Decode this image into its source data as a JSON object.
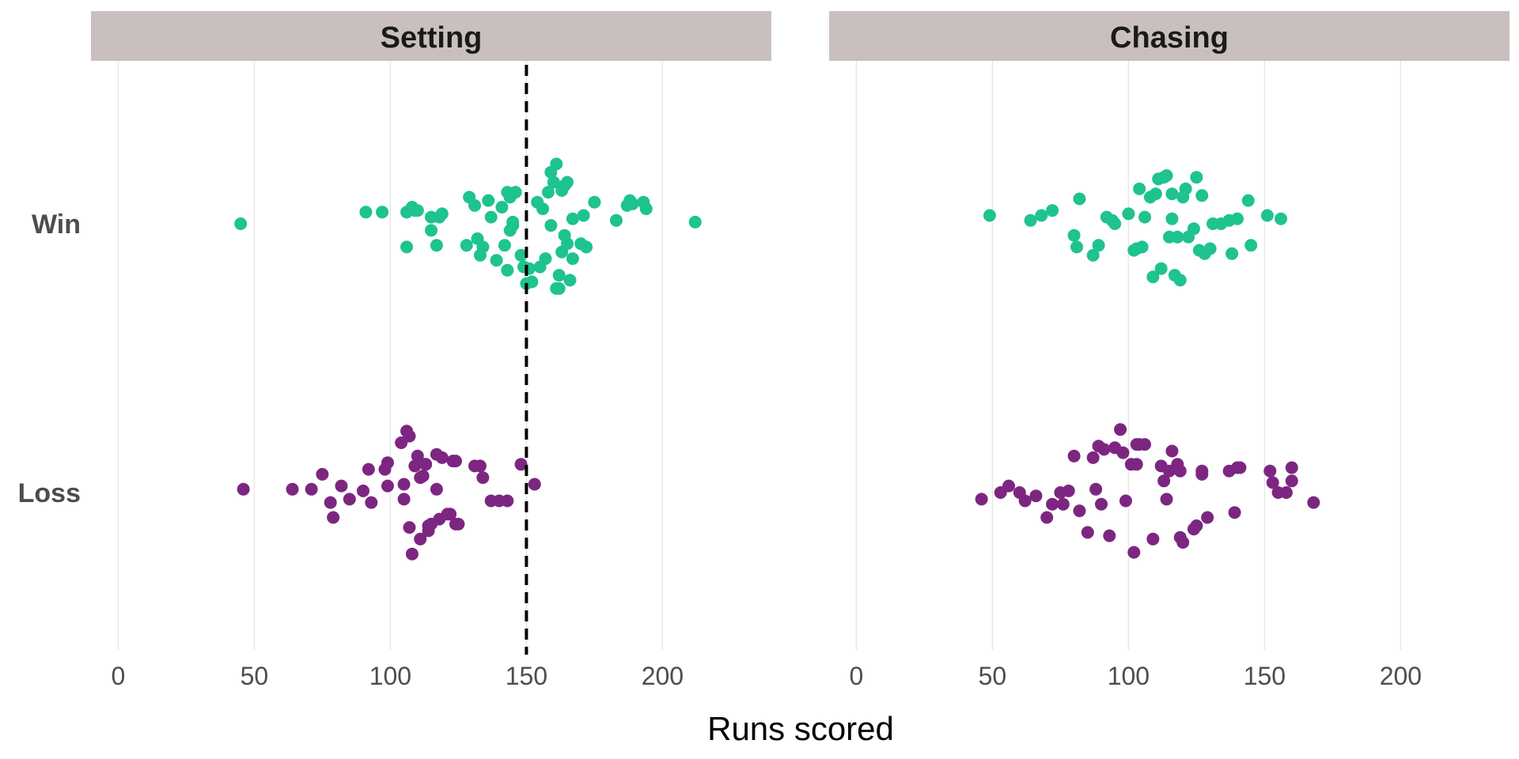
{
  "chart_data": {
    "type": "scatter",
    "subtype": "faceted beeswarm / jitter strip plot",
    "xlabel": "Runs scored",
    "ylabel": "",
    "xlim": [
      -10,
      240
    ],
    "x_ticks": [
      0,
      50,
      100,
      150,
      200
    ],
    "categories": [
      "Win",
      "Loss"
    ],
    "grid": "vertical major gridlines only",
    "legend": "none",
    "colors": {
      "Win": "#1ec38f",
      "Loss": "#7d2681",
      "strip": "#c9c0bd"
    },
    "facets": [
      {
        "title": "Setting",
        "reference_line": {
          "x": 150,
          "style": "dashed",
          "color": "#000000"
        },
        "series": [
          {
            "category": "Win",
            "x": [
              45,
              91,
              97,
              106,
              106,
              108,
              109,
              110,
              115,
              115,
              117,
              118,
              119,
              128,
              129,
              131,
              132,
              133,
              134,
              136,
              137,
              139,
              141,
              142,
              143,
              143,
              144,
              144,
              145,
              145,
              146,
              148,
              149,
              150,
              151,
              152,
              154,
              155,
              156,
              157,
              158,
              159,
              159,
              160,
              161,
              161,
              162,
              162,
              163,
              163,
              164,
              164,
              165,
              165,
              166,
              167,
              167,
              170,
              171,
              172,
              175,
              183,
              187,
              188,
              189,
              193,
              194,
              212
            ],
            "jitter": [
              0,
              0.07,
              0.07,
              -0.14,
              0.07,
              0.1,
              0.08,
              0.08,
              0.04,
              -0.04,
              -0.13,
              0.04,
              0.06,
              -0.13,
              0.16,
              0.11,
              -0.09,
              -0.19,
              -0.14,
              0.14,
              0.04,
              -0.22,
              0.1,
              -0.13,
              -0.28,
              0.19,
              0.16,
              -0.04,
              -0.01,
              0.01,
              0.19,
              -0.19,
              -0.26,
              -0.36,
              -0.27,
              -0.35,
              0.13,
              -0.26,
              0.09,
              -0.21,
              0.19,
              -0.01,
              0.31,
              0.25,
              -0.39,
              0.36,
              -0.31,
              -0.39,
              -0.17,
              0.2,
              0.23,
              -0.07,
              0.25,
              -0.12,
              -0.34,
              -0.21,
              0.03,
              -0.12,
              0.05,
              -0.14,
              0.13,
              0.02,
              0.11,
              0.14,
              0.12,
              0.13,
              0.09,
              0.01
            ],
            "note": "values read visually; dataset spans the full row"
          },
          {
            "category": "Loss",
            "x": [
              46,
              64,
              71,
              75,
              78,
              79,
              82,
              85,
              90,
              92,
              93,
              98,
              99,
              99,
              104,
              105,
              105,
              106,
              107,
              107,
              108,
              109,
              110,
              111,
              111,
              112,
              113,
              113,
              114,
              114,
              115,
              117,
              117,
              118,
              119,
              121,
              122,
              123,
              124,
              124,
              125,
              131,
              133,
              134,
              137,
              140,
              143,
              148,
              153
            ],
            "jitter": [
              0.02,
              0.02,
              0.02,
              0.11,
              -0.06,
              -0.15,
              0.04,
              -0.04,
              0.01,
              0.14,
              -0.06,
              0.14,
              0.18,
              0.04,
              0.3,
              0.05,
              -0.04,
              0.37,
              0.34,
              -0.21,
              -0.37,
              0.16,
              0.22,
              -0.28,
              0.09,
              0.1,
              0.17,
              0.17,
              -0.2,
              -0.23,
              -0.19,
              0.23,
              0.02,
              -0.16,
              0.21,
              -0.13,
              -0.13,
              0.19,
              0.19,
              -0.19,
              -0.19,
              0.16,
              0.16,
              0.09,
              -0.05,
              -0.05,
              -0.05,
              0.17,
              0.05
            ],
            "note": "values read visually"
          }
        ]
      },
      {
        "title": "Chasing",
        "series": [
          {
            "category": "Win",
            "x": [
              49,
              64,
              68,
              72,
              80,
              81,
              82,
              87,
              89,
              92,
              94,
              95,
              100,
              102,
              103,
              104,
              105,
              106,
              108,
              109,
              110,
              111,
              112,
              113,
              114,
              115,
              116,
              116,
              117,
              118,
              119,
              120,
              121,
              122,
              124,
              125,
              126,
              127,
              128,
              130,
              131,
              134,
              137,
              138,
              140,
              144,
              145,
              151,
              156
            ],
            "jitter": [
              0.05,
              0.02,
              0.05,
              0.08,
              -0.07,
              -0.14,
              0.15,
              -0.19,
              -0.13,
              0.04,
              0.02,
              0.0,
              0.06,
              -0.16,
              -0.15,
              0.21,
              -0.14,
              0.04,
              0.16,
              -0.32,
              0.18,
              0.27,
              -0.27,
              0.28,
              0.29,
              -0.08,
              0.03,
              0.18,
              -0.31,
              -0.08,
              -0.34,
              0.16,
              0.21,
              -0.08,
              -0.03,
              0.28,
              -0.16,
              0.17,
              -0.18,
              -0.15,
              0.0,
              0.0,
              0.02,
              -0.18,
              0.03,
              0.14,
              -0.13,
              0.05,
              0.03
            ],
            "note": "values read visually"
          },
          {
            "category": "Loss",
            "x": [
              46,
              53,
              56,
              60,
              62,
              66,
              70,
              72,
              75,
              76,
              78,
              80,
              82,
              85,
              87,
              88,
              89,
              90,
              91,
              93,
              95,
              97,
              98,
              99,
              101,
              102,
              103,
              103,
              104,
              106,
              109,
              112,
              113,
              114,
              115,
              116,
              118,
              119,
              119,
              120,
              124,
              125,
              127,
              127,
              129,
              137,
              139,
              140,
              141,
              152,
              153,
              155,
              158,
              160,
              160,
              168
            ],
            "jitter": [
              -0.04,
              0.0,
              0.04,
              0.0,
              -0.05,
              -0.02,
              -0.15,
              -0.07,
              0.0,
              -0.07,
              0.01,
              0.22,
              -0.11,
              -0.24,
              0.21,
              0.02,
              0.28,
              -0.07,
              0.26,
              -0.26,
              0.27,
              0.38,
              0.24,
              -0.05,
              0.17,
              -0.36,
              0.17,
              0.29,
              0.29,
              0.29,
              -0.28,
              0.16,
              0.07,
              -0.04,
              0.13,
              0.25,
              0.17,
              0.13,
              -0.27,
              -0.3,
              -0.22,
              -0.2,
              0.11,
              0.13,
              -0.15,
              0.13,
              -0.12,
              0.15,
              0.15,
              0.13,
              0.06,
              0.0,
              0.0,
              0.07,
              0.15,
              -0.06
            ],
            "note": "values read visually"
          }
        ]
      }
    ]
  }
}
